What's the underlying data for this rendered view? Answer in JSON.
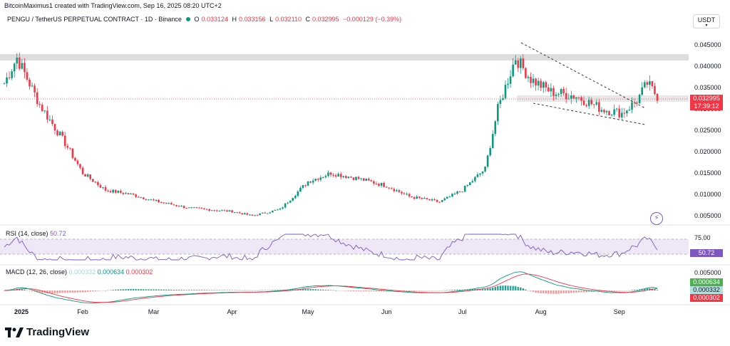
{
  "header": {
    "credit": "BitcoinMaximus1 created with TradingView.com, Sep 16, 2025 08:20 UTC+2",
    "symbol": "PENGU / TetherUS PERPETUAL CONTRACT · 1D · Binance",
    "o_label": "O",
    "o_value": "0.033124",
    "h_label": "H",
    "h_value": "0.033156",
    "l_label": "L",
    "l_value": "0.032110",
    "c_label": "C",
    "c_value": "0.032995",
    "change": "−0.000129 (−0.39%)",
    "currency": "USDT"
  },
  "rsi": {
    "label": "RSI (14, close)",
    "value": "50.72"
  },
  "macd": {
    "label": "MACD (12, 26, close)",
    "v1": "0.000332",
    "v2": "0.000634",
    "v3": "0.000302"
  },
  "price_axis": {
    "ticks": [
      "0.045000",
      "0.040000",
      "0.035000",
      "0.030000",
      "0.025000",
      "0.020000",
      "0.015000",
      "0.010000",
      "0.005000"
    ],
    "last_price": "0.032995",
    "countdown": "17:39:12"
  },
  "rsi_axis": {
    "ticks": [
      "75.00"
    ],
    "last": "50.72"
  },
  "macd_axis": {
    "ticks": [
      "0.005000"
    ],
    "tag1": "0.000634",
    "tag2": "0.000332",
    "tag3": "0.000302"
  },
  "time_axis": {
    "labels": [
      "2025",
      "Feb",
      "Mar",
      "Apr",
      "May",
      "Jun",
      "Jul",
      "Aug",
      "Sep"
    ]
  },
  "brand": {
    "name": "TradingView"
  },
  "colors": {
    "up": "#089981",
    "down": "#f23645",
    "rsi": "#7e57c2",
    "macd_signal": "#f23645",
    "macd_line": "#089981"
  },
  "chart_data": {
    "type": "candlestick",
    "symbol": "PENGU/USDT perpetual",
    "interval": "1D",
    "ylim": [
      0.003,
      0.048
    ],
    "series": [
      {
        "name": "price_close_approx",
        "x": [
          "2025-01-01",
          "2025-01-06",
          "2025-01-15",
          "2025-01-25",
          "2025-02-01",
          "2025-02-10",
          "2025-02-20",
          "2025-03-01",
          "2025-03-15",
          "2025-04-01",
          "2025-04-09",
          "2025-04-20",
          "2025-05-01",
          "2025-05-10",
          "2025-05-20",
          "2025-06-01",
          "2025-06-10",
          "2025-06-22",
          "2025-07-01",
          "2025-07-10",
          "2025-07-15",
          "2025-07-22",
          "2025-07-28",
          "2025-08-05",
          "2025-08-15",
          "2025-08-25",
          "2025-09-02",
          "2025-09-08",
          "2025-09-12",
          "2025-09-16"
        ],
        "values": [
          0.036,
          0.042,
          0.031,
          0.022,
          0.015,
          0.011,
          0.01,
          0.0085,
          0.0068,
          0.006,
          0.005,
          0.0065,
          0.013,
          0.015,
          0.0138,
          0.012,
          0.0095,
          0.0082,
          0.011,
          0.016,
          0.03,
          0.042,
          0.037,
          0.034,
          0.033,
          0.03,
          0.029,
          0.032,
          0.036,
          0.032995
        ]
      }
    ],
    "resistance_zone": [
      0.0425,
      0.044
    ],
    "annotations": [
      "descending wedge (upper and lower dashed trendlines) Jul 28 – Sep 8"
    ]
  }
}
